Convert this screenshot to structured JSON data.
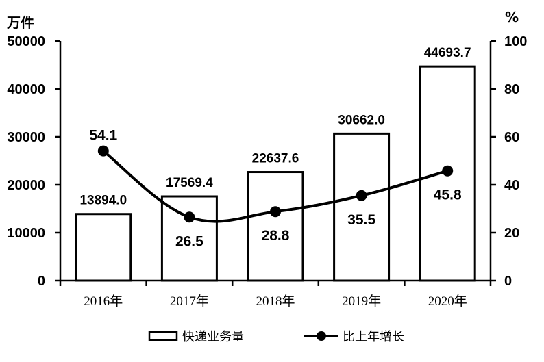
{
  "chart_data": {
    "type": "bar",
    "categories": [
      "2016年",
      "2017年",
      "2018年",
      "2019年",
      "2020年"
    ],
    "series": [
      {
        "name": "快递业务量",
        "type": "bar",
        "axis": "left",
        "values": [
          13894.0,
          17569.4,
          22637.6,
          30662.0,
          44693.7
        ],
        "labels": [
          "13894.0",
          "17569.4",
          "22637.6",
          "30662.0",
          "44693.7"
        ]
      },
      {
        "name": "比上年增长",
        "type": "line",
        "axis": "right",
        "values": [
          54.1,
          26.5,
          28.8,
          35.5,
          45.8
        ],
        "labels": [
          "54.1",
          "26.5",
          "28.8",
          "35.5",
          "45.8"
        ]
      }
    ],
    "left_axis": {
      "unit": "万件",
      "ylim": [
        0,
        50000
      ],
      "ticks": [
        "0",
        "10000",
        "20000",
        "30000",
        "40000",
        "50000"
      ]
    },
    "right_axis": {
      "unit": "%",
      "ylim": [
        0,
        100
      ],
      "ticks": [
        "0",
        "20",
        "40",
        "60",
        "80",
        "100"
      ]
    },
    "grid": false,
    "legend_position": "bottom"
  }
}
